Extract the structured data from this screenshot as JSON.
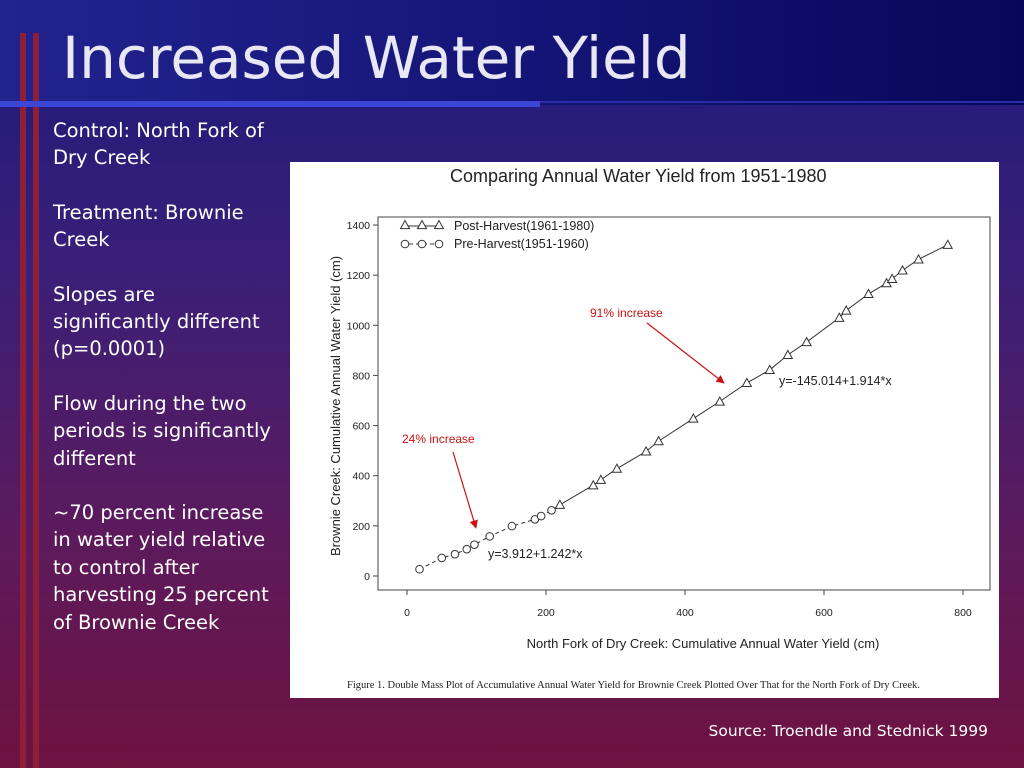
{
  "slide": {
    "title": "Increased Water Yield",
    "notes": [
      "Control: North Fork of Dry Creek",
      "Treatment: Brownie Creek",
      "Slopes are significantly different (p=0.0001)",
      "Flow during the two periods is significantly different",
      "~70 percent increase in water yield relative to control after harvesting 25 percent of Brownie Creek"
    ],
    "source": "Source: Troendle and Stednick 1999"
  },
  "colors": {
    "annotation": "#cc1111",
    "accent_bar": "#8e1f38",
    "title_text": "#e8e8f4"
  },
  "chart_data": {
    "type": "scatter",
    "title": "Comparing Annual Water Yield from 1951-1980",
    "xlabel": "North Fork of Dry Creek: Cumulative Annual Water Yield (cm)",
    "ylabel": "Brownie Creek: Cumulative Annual Water Yield (cm)",
    "xlim": [
      0,
      800
    ],
    "ylim": [
      0,
      1400
    ],
    "x_ticks": [
      0,
      200,
      400,
      600,
      800
    ],
    "y_ticks": [
      0,
      200,
      400,
      600,
      800,
      1000,
      1200,
      1400
    ],
    "legend_position": "top-left",
    "series": [
      {
        "name": "Post-Harvest(1961-1980)",
        "marker": "triangle",
        "line": "solid",
        "x": [
          220,
          268,
          279,
          302,
          344,
          362,
          412,
          450,
          489,
          522,
          548,
          575,
          622,
          632,
          664,
          690,
          698,
          713,
          736,
          778
        ],
        "y": [
          284,
          362,
          384,
          428,
          497,
          538,
          628,
          696,
          770,
          822,
          882,
          933,
          1030,
          1059,
          1125,
          1168,
          1185,
          1219,
          1263,
          1321
        ]
      },
      {
        "name": "Pre-Harvest(1951-1960)",
        "marker": "circle",
        "line": "dashed",
        "x": [
          18,
          50,
          69,
          86,
          97,
          119,
          151,
          184,
          193,
          208
        ],
        "y": [
          27,
          72,
          87,
          107,
          125,
          158,
          199,
          226,
          239,
          262
        ]
      }
    ],
    "fits": [
      {
        "label": "y=3.912+1.242*x",
        "x_range": [
          18,
          208
        ]
      },
      {
        "label": "y=-145.014+1.914*x",
        "x_range": [
          210,
          778
        ]
      }
    ],
    "annotations": [
      "91% increase",
      "24% increase"
    ],
    "caption": "Figure 1. Double Mass Plot of Accumulative Annual Water Yield for Brownie Creek Plotted Over That for the North Fork of Dry Creek."
  }
}
